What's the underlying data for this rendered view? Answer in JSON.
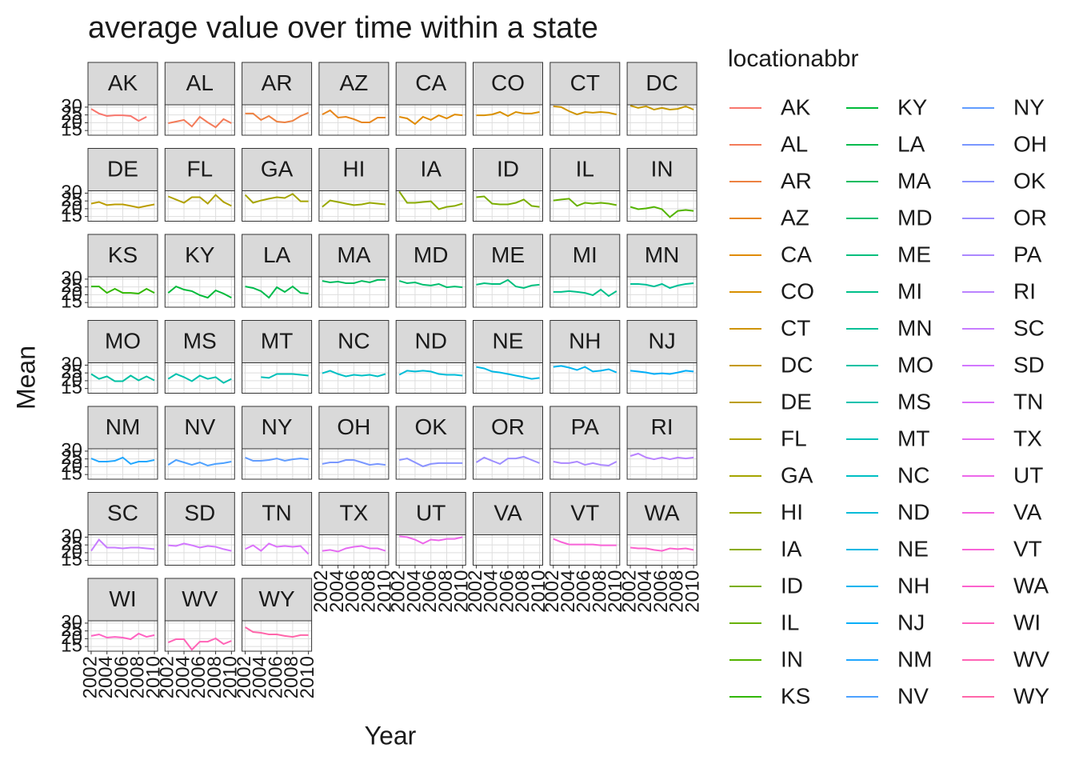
{
  "chart_data": {
    "type": "line",
    "title": "average value over time within a state",
    "x_label": "Year",
    "y_label": "Mean",
    "legend_title": "locationabbr",
    "facet": true,
    "grid": true,
    "x": [
      2002,
      2003,
      2004,
      2005,
      2006,
      2007,
      2008,
      2009,
      2010
    ],
    "xlim": [
      2001.6,
      2010.4
    ],
    "xticks": [
      2002,
      2004,
      2006,
      2008,
      2010
    ],
    "ylim": [
      12,
      31.5
    ],
    "yticks": [
      15,
      20,
      25,
      30
    ],
    "series": [
      {
        "name": "AK",
        "color": "#F8766D",
        "values": [
          28.9,
          25.9,
          24.3,
          24.8,
          24.8,
          24.3,
          21.2,
          23.8,
          null
        ]
      },
      {
        "name": "AL",
        "color": "#F37B59",
        "values": [
          19.7,
          20.7,
          21.8,
          17.6,
          23.8,
          20.2,
          17.1,
          22.3,
          19.7
        ]
      },
      {
        "name": "AR",
        "color": "#ED8141",
        "values": [
          25.9,
          25.9,
          21.8,
          24.3,
          20.7,
          20.2,
          21.2,
          24.3,
          26.4
        ]
      },
      {
        "name": "AZ",
        "color": "#E7861B",
        "values": [
          25.3,
          27.9,
          23.3,
          23.8,
          22.3,
          20.2,
          20.2,
          23.3,
          23.3
        ]
      },
      {
        "name": "CA",
        "color": "#E08B00",
        "values": [
          23.8,
          22.8,
          19.2,
          23.8,
          21.8,
          24.8,
          22.8,
          25.3,
          24.8
        ]
      },
      {
        "name": "CO",
        "color": "#D89000",
        "values": [
          24.8,
          24.8,
          25.3,
          26.9,
          24.3,
          26.9,
          25.9,
          25.9,
          26.9
        ]
      },
      {
        "name": "CT",
        "color": "#CF9400",
        "values": [
          30.5,
          30,
          27.4,
          25.3,
          26.9,
          26.4,
          26.9,
          26.4,
          25.3
        ]
      },
      {
        "name": "DC",
        "color": "#C59900",
        "values": [
          31,
          29.5,
          30.5,
          28.4,
          29.5,
          28.4,
          28.9,
          30.5,
          28.4
        ]
      },
      {
        "name": "DE",
        "color": "#BB9D00",
        "values": [
          23.3,
          24.3,
          22.3,
          22.8,
          22.8,
          21.8,
          20.7,
          21.8,
          22.8
        ]
      },
      {
        "name": "FL",
        "color": "#B0A100",
        "values": [
          27.9,
          25.9,
          23.8,
          27.4,
          27.4,
          23.3,
          28.9,
          24.3,
          21.8
        ]
      },
      {
        "name": "GA",
        "color": "#A5A400",
        "values": [
          28.9,
          23.8,
          25.3,
          26.4,
          27.4,
          26.9,
          29.5,
          24.8,
          24.8
        ]
      },
      {
        "name": "HI",
        "color": "#98A800",
        "values": [
          21.2,
          25.3,
          24.3,
          23.3,
          22.3,
          22.8,
          23.8,
          23.3,
          22.8
        ]
      },
      {
        "name": "IA",
        "color": "#8AAB00",
        "values": [
          31,
          23.8,
          23.8,
          24.3,
          24.8,
          19.7,
          21.2,
          21.8,
          23.3
        ]
      },
      {
        "name": "ID",
        "color": "#7AAE00",
        "values": [
          27.4,
          27.9,
          23.3,
          22.8,
          22.8,
          23.8,
          25.9,
          21.8,
          21.2
        ]
      },
      {
        "name": "IL",
        "color": "#68B100",
        "values": [
          25.3,
          25.9,
          26.4,
          21.8,
          23.8,
          23.3,
          23.8,
          23.3,
          22.3
        ]
      },
      {
        "name": "IN",
        "color": "#52B400",
        "values": [
          21.2,
          19.7,
          20.2,
          21.2,
          19.7,
          14.6,
          18.6,
          19.2,
          18.6
        ]
      },
      {
        "name": "KS",
        "color": "#31B700",
        "values": [
          25.3,
          25.3,
          21.2,
          23.8,
          21.2,
          21.2,
          20.7,
          23.8,
          21.2
        ]
      },
      {
        "name": "KY",
        "color": "#00BA38",
        "values": [
          21.2,
          25.3,
          23.3,
          22.3,
          19.7,
          18.1,
          22.8,
          20.7,
          18.1
        ]
      },
      {
        "name": "LA",
        "color": "#00BB4E",
        "values": [
          25.3,
          24.3,
          22.3,
          18.1,
          24.8,
          21.8,
          25.3,
          21.2,
          20.7
        ]
      },
      {
        "name": "MA",
        "color": "#00BC5F",
        "values": [
          28.9,
          27.9,
          28.4,
          27.4,
          27.4,
          28.9,
          27.9,
          29.5,
          29.5
        ]
      },
      {
        "name": "MD",
        "color": "#00BE6E",
        "values": [
          28.9,
          27.4,
          27.9,
          26.4,
          25.9,
          26.9,
          24.8,
          25.3,
          24.8
        ]
      },
      {
        "name": "ME",
        "color": "#00BF7D",
        "values": [
          26.4,
          27.4,
          26.9,
          26.9,
          29.5,
          25.3,
          24.3,
          25.9,
          26.4
        ]
      },
      {
        "name": "MI",
        "color": "#00C08A",
        "values": [
          21.8,
          21.8,
          22.3,
          21.8,
          21.2,
          19.7,
          23.3,
          19.2,
          22.3
        ]
      },
      {
        "name": "MN",
        "color": "#00C097",
        "values": [
          26.9,
          26.9,
          26.4,
          25.3,
          26.9,
          24.3,
          25.9,
          26.9,
          27.4
        ]
      },
      {
        "name": "MO",
        "color": "#00C1A3",
        "values": [
          24.3,
          21.2,
          22.8,
          19.7,
          19.7,
          23.3,
          20.2,
          22.8,
          20.2
        ]
      },
      {
        "name": "MS",
        "color": "#00C1AE",
        "values": [
          21.2,
          24.3,
          22.3,
          19.7,
          23.3,
          21.2,
          22.3,
          18.6,
          21.2
        ]
      },
      {
        "name": "MT",
        "color": "#00C0B9",
        "values": [
          null,
          null,
          22.3,
          21.8,
          24.3,
          24.3,
          24.3,
          23.8,
          23.3
        ]
      },
      {
        "name": "NC",
        "color": "#00BFC4",
        "values": [
          24.8,
          26.4,
          24.3,
          22.8,
          23.8,
          23.3,
          23.8,
          22.8,
          24.3
        ]
      },
      {
        "name": "ND",
        "color": "#00BCD8",
        "values": [
          23.8,
          26.4,
          25.9,
          26.4,
          25.9,
          24.3,
          23.8,
          23.8,
          23.3
        ]
      },
      {
        "name": "NE",
        "color": "#00B8E4",
        "values": [
          28.9,
          27.9,
          25.9,
          25.3,
          24.3,
          23.3,
          22.3,
          21.2,
          21.8
        ]
      },
      {
        "name": "NH",
        "color": "#00B4EF",
        "values": [
          28.9,
          29.5,
          28.4,
          26.9,
          28.9,
          25.9,
          26.4,
          27.4,
          25.3
        ]
      },
      {
        "name": "NJ",
        "color": "#00AEF8",
        "values": [
          26.4,
          25.9,
          25.3,
          24.3,
          24.8,
          24.3,
          25.3,
          26.4,
          25.9
        ]
      },
      {
        "name": "NM",
        "color": "#21A7FF",
        "values": [
          25.3,
          23.3,
          23.3,
          23.8,
          25.9,
          21.8,
          23.3,
          23.3,
          24.3
        ]
      },
      {
        "name": "NV",
        "color": "#4DA1FF",
        "values": [
          21.2,
          24.3,
          22.8,
          21.2,
          22.8,
          20.7,
          21.8,
          22.3,
          23.3
        ]
      },
      {
        "name": "NY",
        "color": "#619CFF",
        "values": [
          25.9,
          23.8,
          23.8,
          24.3,
          25.3,
          23.8,
          24.8,
          25.3,
          24.8
        ]
      },
      {
        "name": "OH",
        "color": "#7997FF",
        "values": [
          21.8,
          22.8,
          22.8,
          24.3,
          24.3,
          22.8,
          21.2,
          21.8,
          21.2
        ]
      },
      {
        "name": "OK",
        "color": "#8B93FF",
        "values": [
          24.3,
          25.3,
          22.8,
          20.2,
          21.8,
          22.3,
          22.3,
          22.3,
          22.3
        ]
      },
      {
        "name": "OR",
        "color": "#9C8DFF",
        "values": [
          22.8,
          25.9,
          23.8,
          21.8,
          25.3,
          25.3,
          26.4,
          24.3,
          22.3
        ]
      },
      {
        "name": "PA",
        "color": "#AC88FF",
        "values": [
          23.3,
          22.3,
          22.3,
          23.3,
          21.2,
          22.3,
          21.2,
          20.7,
          23.3
        ]
      },
      {
        "name": "RI",
        "color": "#BA83FF",
        "values": [
          26.9,
          28.4,
          25.9,
          24.8,
          25.9,
          24.8,
          25.9,
          25.3,
          25.9
        ]
      },
      {
        "name": "SC",
        "color": "#C77CFF",
        "values": [
          21.2,
          28.4,
          23.3,
          23.3,
          22.8,
          23.3,
          23.3,
          22.8,
          22.3
        ]
      },
      {
        "name": "SD",
        "color": "#D277FF",
        "values": [
          24.8,
          24.3,
          25.9,
          24.8,
          23.3,
          24.3,
          23.8,
          22.3,
          21.2
        ]
      },
      {
        "name": "TN",
        "color": "#DC71FA",
        "values": [
          22.3,
          24.8,
          21.2,
          25.9,
          23.8,
          24.3,
          23.8,
          24.3,
          19.2
        ]
      },
      {
        "name": "TX",
        "color": "#E56CF2",
        "values": [
          21.2,
          21.8,
          20.7,
          22.8,
          23.8,
          24.3,
          22.8,
          22.8,
          21.2
        ]
      },
      {
        "name": "UT",
        "color": "#ED68EA",
        "values": [
          30.5,
          30,
          28.4,
          25.9,
          28.4,
          27.9,
          28.9,
          28.9,
          30
        ]
      },
      {
        "name": "VA",
        "color": "#F364E2",
        "values": [
          null,
          null,
          null,
          null,
          null,
          null,
          null,
          null,
          null
        ]
      },
      {
        "name": "VT",
        "color": "#F863D8",
        "values": [
          28.9,
          26.9,
          25.3,
          25.3,
          25.3,
          25.3,
          24.8,
          24.8,
          24.8
        ]
      },
      {
        "name": "WA",
        "color": "#FC62CD",
        "values": [
          23.3,
          22.8,
          22.8,
          21.8,
          21.2,
          22.8,
          22.3,
          22.8,
          21.8
        ]
      },
      {
        "name": "WI",
        "color": "#FE63C2",
        "values": [
          21.8,
          22.8,
          20.7,
          21.2,
          20.7,
          19.7,
          23.3,
          21.2,
          22.3
        ]
      },
      {
        "name": "WV",
        "color": "#FF64B6",
        "values": [
          17.6,
          19.7,
          19.7,
          13,
          18.1,
          18.1,
          20.2,
          16.6,
          18.6
        ]
      },
      {
        "name": "WY",
        "color": "#FF66AA",
        "values": [
          27.4,
          24.3,
          23.8,
          22.8,
          22.8,
          21.8,
          21.2,
          22.3,
          22.3
        ]
      }
    ]
  }
}
